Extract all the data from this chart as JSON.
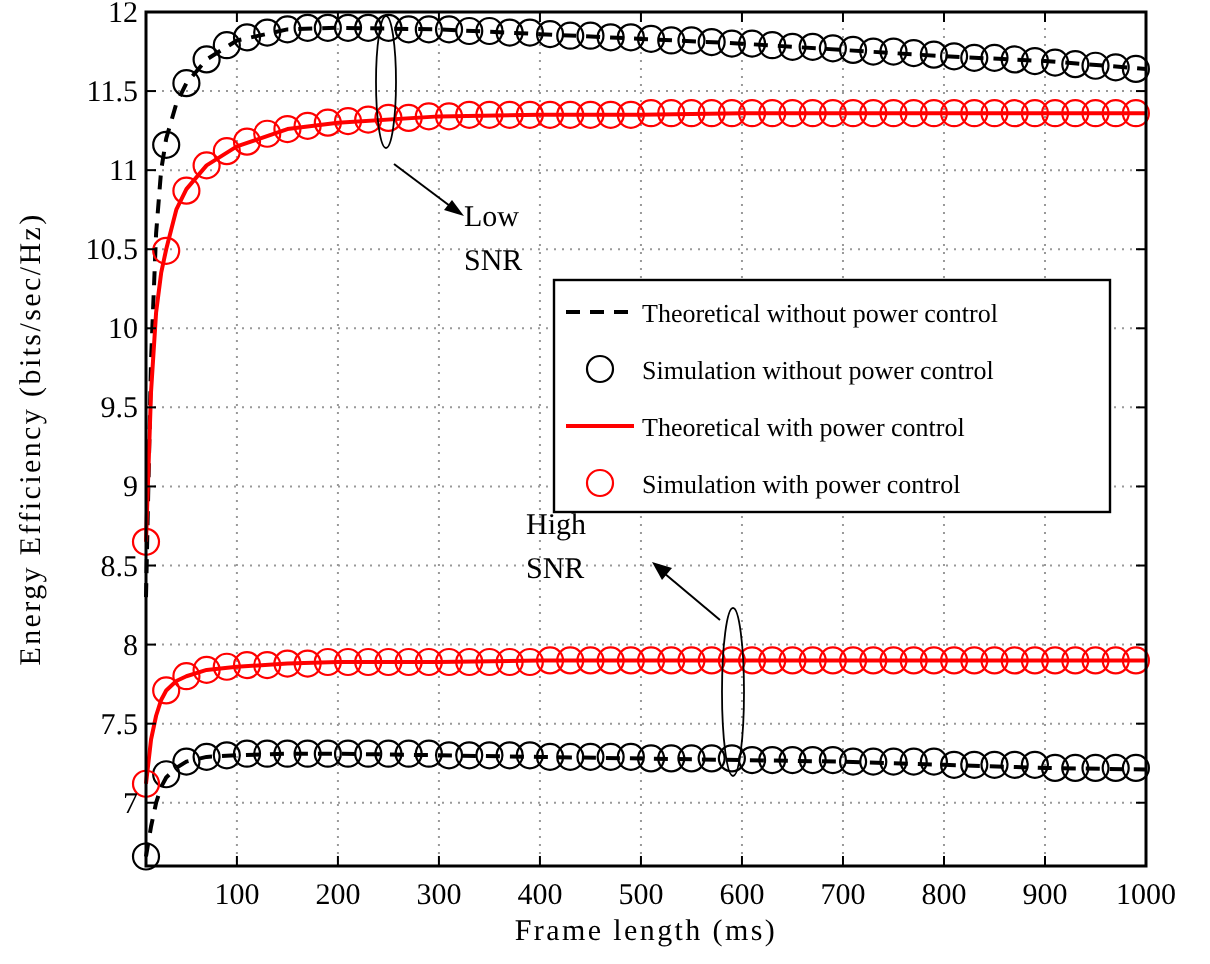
{
  "chart_data": {
    "type": "line",
    "xlabel": "Frame length (ms)",
    "ylabel": "Energy Efficiency (bits/sec/Hz)",
    "xlim": [
      10,
      1000
    ],
    "ylim": [
      6.6,
      12
    ],
    "xticks": [
      100,
      200,
      300,
      400,
      500,
      600,
      700,
      800,
      900,
      1000
    ],
    "yticks": [
      7,
      7.5,
      8,
      8.5,
      9,
      9.5,
      10,
      10.5,
      11,
      11.5,
      12
    ],
    "grid": true,
    "legend": "right",
    "annotations": [
      "Low SNR",
      "High SNR"
    ],
    "series": [
      {
        "name": "Theoretical without power control",
        "line_style": "dashed",
        "marker": "none",
        "color": "#000000",
        "x": [
          10,
          15,
          20,
          25,
          30,
          40,
          50,
          70,
          100,
          150,
          200,
          300,
          400,
          500,
          600,
          700,
          800,
          900,
          1000
        ],
        "values": [
          8.3,
          9.8,
          10.6,
          11.0,
          11.2,
          11.42,
          11.55,
          11.7,
          11.82,
          11.89,
          11.9,
          11.89,
          11.86,
          11.83,
          11.8,
          11.76,
          11.72,
          11.69,
          11.64
        ]
      },
      {
        "name": "Simulation without power control",
        "type": "scatter",
        "marker": "circle",
        "color": "#000000",
        "x": [
          30,
          50,
          70,
          90,
          110,
          130,
          150,
          170,
          190,
          210,
          230,
          250,
          270,
          290,
          310,
          330,
          350,
          370,
          390,
          410,
          430,
          450,
          470,
          490,
          510,
          530,
          550,
          570,
          590,
          610,
          630,
          650,
          670,
          690,
          710,
          730,
          750,
          770,
          790,
          810,
          830,
          850,
          870,
          890,
          910,
          930,
          950,
          970,
          990
        ],
        "values": [
          11.16,
          11.55,
          11.7,
          11.79,
          11.84,
          11.87,
          11.89,
          11.9,
          11.9,
          11.9,
          11.9,
          11.9,
          11.89,
          11.89,
          11.89,
          11.88,
          11.88,
          11.87,
          11.87,
          11.86,
          11.85,
          11.85,
          11.84,
          11.84,
          11.83,
          11.82,
          11.82,
          11.81,
          11.8,
          11.8,
          11.79,
          11.78,
          11.78,
          11.77,
          11.76,
          11.75,
          11.75,
          11.74,
          11.73,
          11.72,
          11.71,
          11.71,
          11.7,
          11.69,
          11.68,
          11.67,
          11.66,
          11.65,
          11.64
        ]
      },
      {
        "name": "Theoretical with power control",
        "line_style": "solid",
        "marker": "none",
        "color": "#ff0000",
        "x": [
          10,
          15,
          20,
          25,
          30,
          40,
          50,
          70,
          100,
          150,
          200,
          300,
          400,
          500,
          600,
          700,
          800,
          900,
          1000
        ],
        "values": [
          8.65,
          9.6,
          10.1,
          10.35,
          10.5,
          10.75,
          10.88,
          11.03,
          11.15,
          11.26,
          11.3,
          11.34,
          11.35,
          11.35,
          11.36,
          11.36,
          11.36,
          11.36,
          11.36
        ]
      },
      {
        "name": "Simulation with power control",
        "type": "scatter",
        "marker": "circle",
        "color": "#ff0000",
        "x": [
          10,
          30,
          50,
          70,
          90,
          110,
          130,
          150,
          170,
          190,
          210,
          230,
          250,
          270,
          290,
          310,
          330,
          350,
          370,
          390,
          410,
          430,
          450,
          470,
          490,
          510,
          530,
          550,
          570,
          590,
          610,
          630,
          650,
          670,
          690,
          710,
          730,
          750,
          770,
          790,
          810,
          830,
          850,
          870,
          890,
          910,
          930,
          950,
          970,
          990
        ],
        "values": [
          8.65,
          10.49,
          10.87,
          11.03,
          11.12,
          11.18,
          11.23,
          11.26,
          11.28,
          11.3,
          11.31,
          11.32,
          11.33,
          11.33,
          11.34,
          11.34,
          11.35,
          11.35,
          11.35,
          11.35,
          11.35,
          11.35,
          11.35,
          11.35,
          11.35,
          11.36,
          11.36,
          11.36,
          11.36,
          11.36,
          11.36,
          11.36,
          11.36,
          11.36,
          11.36,
          11.36,
          11.36,
          11.36,
          11.36,
          11.36,
          11.36,
          11.36,
          11.36,
          11.36,
          11.36,
          11.36,
          11.36,
          11.36,
          11.36,
          11.36
        ]
      },
      {
        "line_style": "dashed",
        "marker": "none",
        "color": "#000000",
        "x": [
          10,
          15,
          20,
          25,
          30,
          40,
          50,
          70,
          100,
          150,
          200,
          300,
          400,
          500,
          600,
          700,
          800,
          900,
          1000
        ],
        "values": [
          6.66,
          6.85,
          7.0,
          7.1,
          7.16,
          7.22,
          7.26,
          7.29,
          7.3,
          7.31,
          7.31,
          7.3,
          7.29,
          7.28,
          7.27,
          7.26,
          7.24,
          7.22,
          7.21
        ]
      },
      {
        "type": "scatter",
        "marker": "circle",
        "color": "#000000",
        "x": [
          10,
          30,
          50,
          70,
          90,
          110,
          130,
          150,
          170,
          190,
          210,
          230,
          250,
          270,
          290,
          310,
          330,
          350,
          370,
          390,
          410,
          430,
          450,
          470,
          490,
          510,
          530,
          550,
          570,
          590,
          610,
          630,
          650,
          670,
          690,
          710,
          730,
          750,
          770,
          790,
          810,
          830,
          850,
          870,
          890,
          910,
          930,
          950,
          970,
          990
        ],
        "values": [
          6.66,
          7.18,
          7.26,
          7.29,
          7.3,
          7.31,
          7.31,
          7.31,
          7.31,
          7.31,
          7.31,
          7.31,
          7.31,
          7.31,
          7.31,
          7.3,
          7.3,
          7.3,
          7.3,
          7.3,
          7.29,
          7.29,
          7.29,
          7.29,
          7.29,
          7.28,
          7.28,
          7.28,
          7.28,
          7.28,
          7.27,
          7.27,
          7.27,
          7.27,
          7.27,
          7.26,
          7.26,
          7.26,
          7.26,
          7.26,
          7.24,
          7.24,
          7.24,
          7.24,
          7.24,
          7.22,
          7.22,
          7.22,
          7.22,
          7.22
        ]
      },
      {
        "line_style": "solid",
        "marker": "none",
        "color": "#ff0000",
        "x": [
          10,
          15,
          20,
          25,
          30,
          40,
          50,
          70,
          100,
          150,
          200,
          300,
          400,
          500,
          600,
          700,
          800,
          900,
          1000
        ],
        "values": [
          7.12,
          7.4,
          7.55,
          7.65,
          7.71,
          7.77,
          7.8,
          7.84,
          7.86,
          7.88,
          7.89,
          7.89,
          7.9,
          7.9,
          7.9,
          7.9,
          7.9,
          7.9,
          7.9
        ]
      },
      {
        "type": "scatter",
        "marker": "circle",
        "color": "#ff0000",
        "x": [
          10,
          30,
          50,
          70,
          90,
          110,
          130,
          150,
          170,
          190,
          210,
          230,
          250,
          270,
          290,
          310,
          330,
          350,
          370,
          390,
          410,
          430,
          450,
          470,
          490,
          510,
          530,
          550,
          570,
          590,
          610,
          630,
          650,
          670,
          690,
          710,
          730,
          750,
          770,
          790,
          810,
          830,
          850,
          870,
          890,
          910,
          930,
          950,
          970,
          990
        ],
        "values": [
          7.12,
          7.71,
          7.8,
          7.84,
          7.86,
          7.87,
          7.87,
          7.88,
          7.88,
          7.89,
          7.89,
          7.89,
          7.89,
          7.89,
          7.89,
          7.89,
          7.89,
          7.89,
          7.89,
          7.89,
          7.9,
          7.9,
          7.9,
          7.9,
          7.9,
          7.9,
          7.9,
          7.9,
          7.9,
          7.9,
          7.9,
          7.9,
          7.9,
          7.9,
          7.9,
          7.9,
          7.9,
          7.9,
          7.9,
          7.9,
          7.9,
          7.9,
          7.9,
          7.9,
          7.9,
          7.9,
          7.9,
          7.9,
          7.9,
          7.9
        ]
      }
    ]
  }
}
